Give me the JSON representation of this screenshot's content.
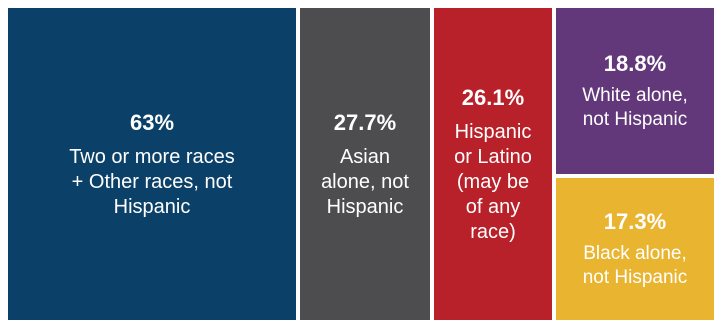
{
  "chart_data": {
    "type": "treemap",
    "items": [
      {
        "value": 63,
        "value_label": "63%",
        "label": "Two or more races\n+ Other races, not\nHispanic",
        "color": "#0b4168"
      },
      {
        "value": 27.7,
        "value_label": "27.7%",
        "label": "Asian\nalone, not\nHispanic",
        "color": "#4d4d4f"
      },
      {
        "value": 26.1,
        "value_label": "26.1%",
        "label": "Hispanic\nor Latino\n(may be\nof any\nrace)",
        "color": "#b8202a"
      },
      {
        "value": 18.8,
        "value_label": "18.8%",
        "label": "White alone,\nnot Hispanic",
        "color": "#62387a"
      },
      {
        "value": 17.3,
        "value_label": "17.3%",
        "label": "Black alone,\nnot Hispanic",
        "color": "#e9b42f"
      }
    ]
  }
}
